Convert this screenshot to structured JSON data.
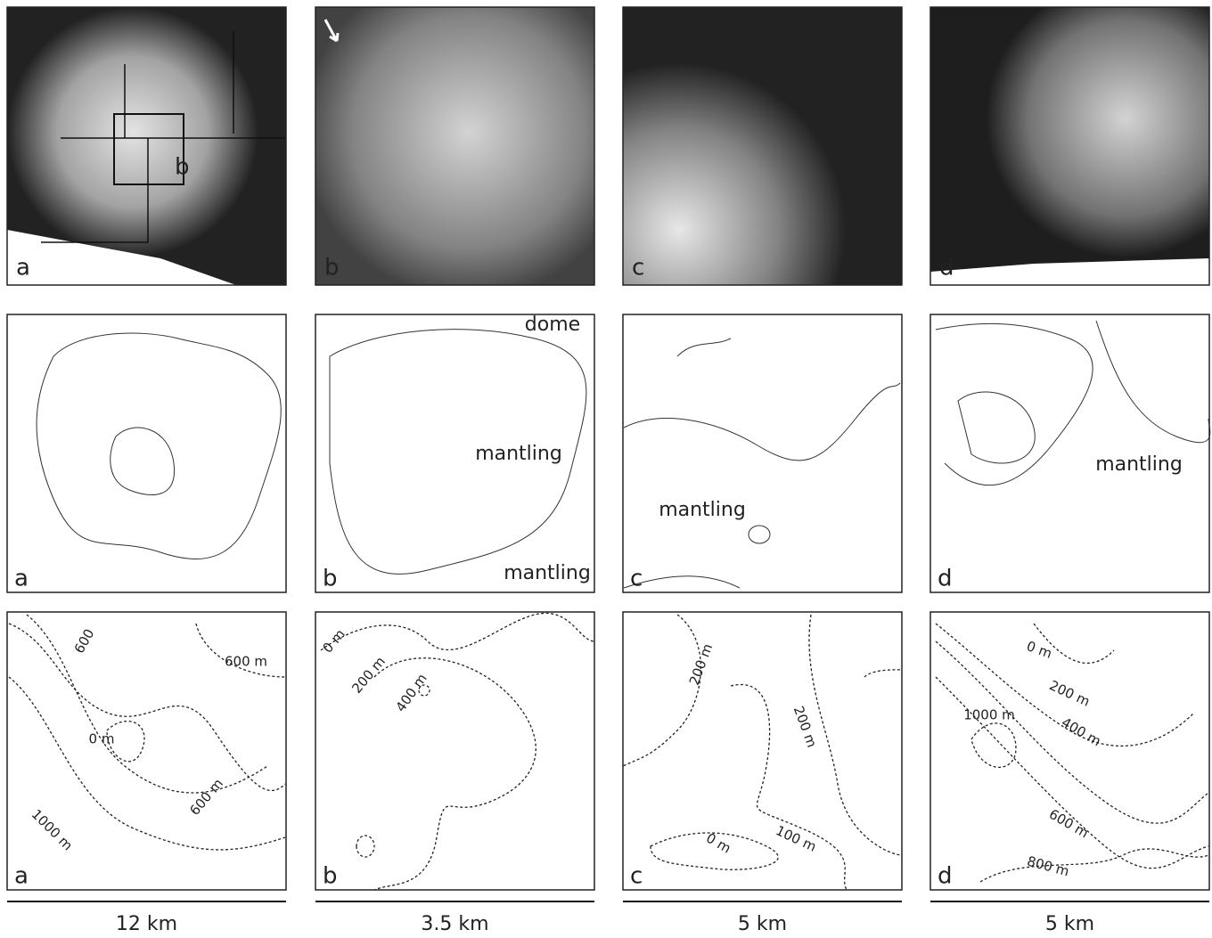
{
  "panels": [
    {
      "image_label": "a",
      "image_annotations": [
        "b"
      ],
      "map_label": "a",
      "map_annotations": [],
      "contour_label": "a",
      "contour_labels": [
        "600",
        "600 m",
        "0 m",
        "600 m",
        "1000 m"
      ],
      "scale_bar": "12 km"
    },
    {
      "image_label": "b",
      "image_annotations": [],
      "map_label": "b",
      "map_annotations": [
        "dome",
        "mantling",
        "mantling"
      ],
      "contour_label": "b",
      "contour_labels": [
        "0 m",
        "200 m",
        "400 m"
      ],
      "scale_bar": "3.5 km"
    },
    {
      "image_label": "c",
      "image_annotations": [],
      "map_label": "c",
      "map_annotations": [
        "mantling"
      ],
      "contour_label": "c",
      "contour_labels": [
        "200 m",
        "200 m",
        "0 m",
        "100 m"
      ],
      "scale_bar": "5 km"
    },
    {
      "image_label": "d",
      "image_annotations": [],
      "map_label": "d",
      "map_annotations": [
        "mantling"
      ],
      "contour_label": "d",
      "contour_labels": [
        "0 m",
        "200 m",
        "1000 m",
        "400 m",
        "600 m",
        "800 m"
      ],
      "scale_bar": "5 km"
    }
  ]
}
